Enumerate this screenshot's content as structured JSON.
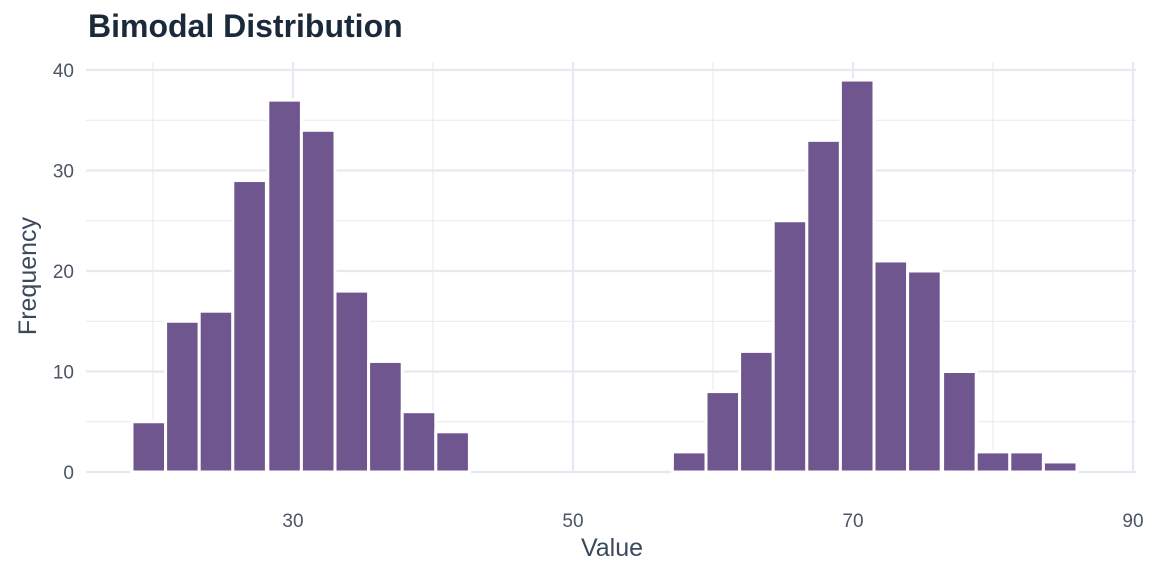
{
  "chart_data": {
    "type": "bar",
    "title": "Bimodal Distribution",
    "xlabel": "Value",
    "ylabel": "Frequency",
    "xlim": [
      15,
      90
    ],
    "ylim": [
      0,
      40
    ],
    "x_ticks": [
      30,
      50,
      70,
      90
    ],
    "y_ticks": [
      0,
      10,
      20,
      30,
      40
    ],
    "bin_width": 2.4,
    "grid": true,
    "colors": {
      "bar": "#6f568f",
      "bar_edge": "#ffffff",
      "grid": "#e6e9ef",
      "title": "#1b2a3a",
      "axis_text": "#4b5563"
    },
    "bins": [
      {
        "x": 19.7,
        "value": 5
      },
      {
        "x": 22.1,
        "value": 15
      },
      {
        "x": 24.5,
        "value": 16
      },
      {
        "x": 26.9,
        "value": 29
      },
      {
        "x": 29.4,
        "value": 37
      },
      {
        "x": 31.8,
        "value": 34
      },
      {
        "x": 34.2,
        "value": 18
      },
      {
        "x": 36.6,
        "value": 11
      },
      {
        "x": 39.0,
        "value": 6
      },
      {
        "x": 41.4,
        "value": 4
      },
      {
        "x": 43.8,
        "value": 0
      },
      {
        "x": 46.2,
        "value": 0
      },
      {
        "x": 48.6,
        "value": 0
      },
      {
        "x": 51.0,
        "value": 0
      },
      {
        "x": 53.4,
        "value": 0
      },
      {
        "x": 55.9,
        "value": 0
      },
      {
        "x": 58.3,
        "value": 2
      },
      {
        "x": 60.7,
        "value": 8
      },
      {
        "x": 63.1,
        "value": 12
      },
      {
        "x": 65.5,
        "value": 25
      },
      {
        "x": 67.9,
        "value": 33
      },
      {
        "x": 70.3,
        "value": 39
      },
      {
        "x": 72.7,
        "value": 21
      },
      {
        "x": 75.1,
        "value": 20
      },
      {
        "x": 77.6,
        "value": 10
      },
      {
        "x": 80.0,
        "value": 2
      },
      {
        "x": 82.4,
        "value": 2
      },
      {
        "x": 84.8,
        "value": 1
      }
    ]
  }
}
